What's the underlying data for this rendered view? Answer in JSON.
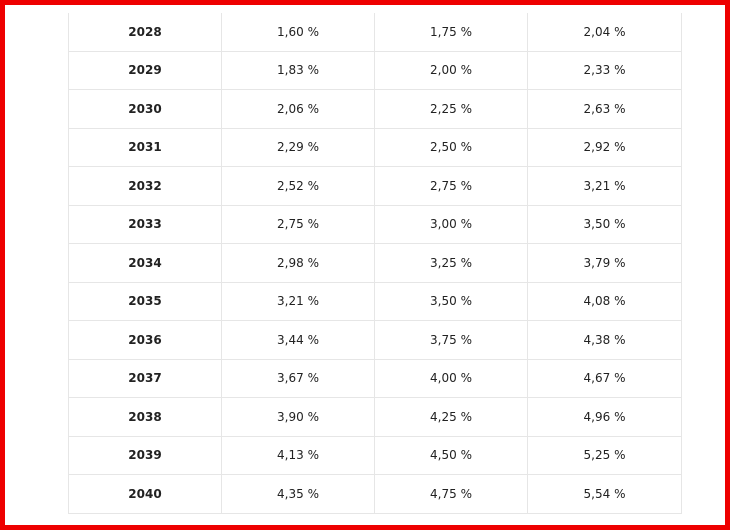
{
  "table": {
    "rows": [
      {
        "year": "2028",
        "v1": "1,60 %",
        "v2": "1,75 %",
        "v3": "2,04 %"
      },
      {
        "year": "2029",
        "v1": "1,83 %",
        "v2": "2,00 %",
        "v3": "2,33 %"
      },
      {
        "year": "2030",
        "v1": "2,06 %",
        "v2": "2,25 %",
        "v3": "2,63 %"
      },
      {
        "year": "2031",
        "v1": "2,29 %",
        "v2": "2,50 %",
        "v3": "2,92 %"
      },
      {
        "year": "2032",
        "v1": "2,52 %",
        "v2": "2,75 %",
        "v3": "3,21 %"
      },
      {
        "year": "2033",
        "v1": "2,75 %",
        "v2": "3,00 %",
        "v3": "3,50 %"
      },
      {
        "year": "2034",
        "v1": "2,98 %",
        "v2": "3,25 %",
        "v3": "3,79 %"
      },
      {
        "year": "2035",
        "v1": "3,21 %",
        "v2": "3,50 %",
        "v3": "4,08 %"
      },
      {
        "year": "2036",
        "v1": "3,44 %",
        "v2": "3,75 %",
        "v3": "4,38 %"
      },
      {
        "year": "2037",
        "v1": "3,67 %",
        "v2": "4,00 %",
        "v3": "4,67 %"
      },
      {
        "year": "2038",
        "v1": "3,90 %",
        "v2": "4,25 %",
        "v3": "4,96 %"
      },
      {
        "year": "2039",
        "v1": "4,13 %",
        "v2": "4,50 %",
        "v3": "5,25 %"
      },
      {
        "year": "2040",
        "v1": "4,35 %",
        "v2": "4,75 %",
        "v3": "5,54 %"
      }
    ]
  },
  "colors": {
    "frame_border": "#ee0000",
    "grid_line": "#e6e6e6",
    "text": "#222222"
  }
}
